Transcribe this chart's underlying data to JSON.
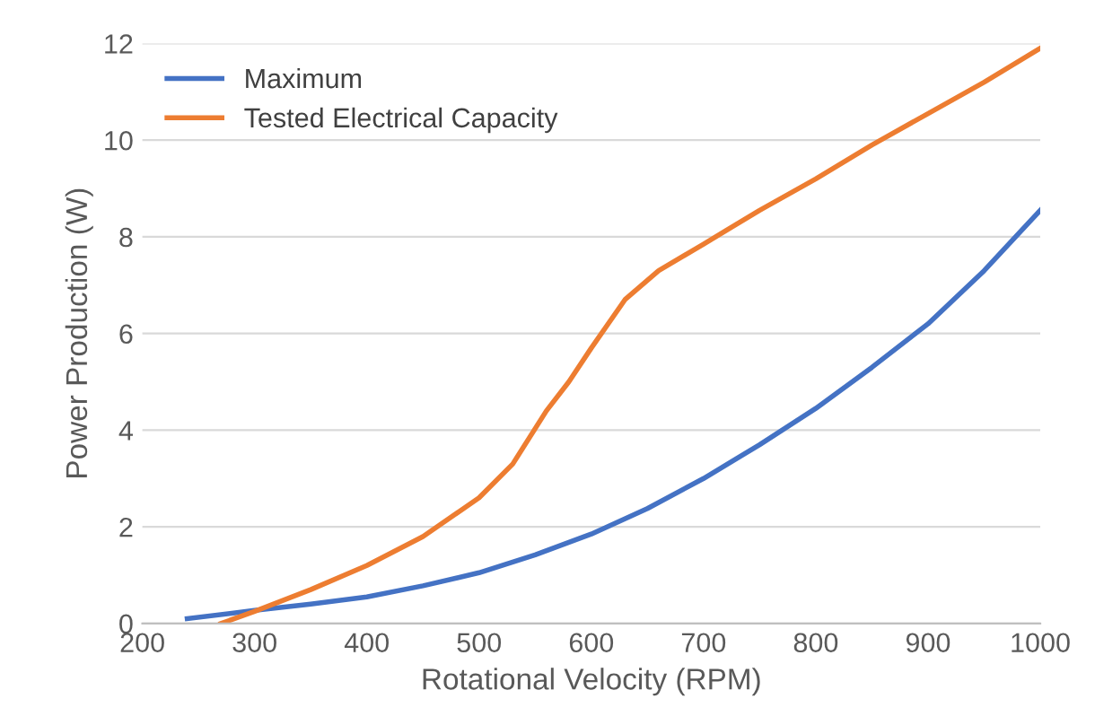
{
  "chart_data": {
    "type": "line",
    "xlabel": "Rotational Velocity (RPM)",
    "ylabel": "Power Production (W)",
    "xlim": [
      200,
      1000
    ],
    "xticks": [
      200,
      300,
      400,
      500,
      600,
      700,
      800,
      900,
      1000
    ],
    "ylim": [
      0,
      12
    ],
    "yticks": [
      0,
      2,
      4,
      6,
      8,
      10,
      12
    ],
    "grid": "y",
    "legend": "top left",
    "marker": "none",
    "line_style": "solid",
    "series": [
      {
        "name": "Maximum",
        "color": "#4472c4",
        "x": [
          240,
          300,
          350,
          400,
          450,
          500,
          550,
          600,
          650,
          700,
          750,
          800,
          850,
          900,
          950,
          1000
        ],
        "values": [
          0.1,
          0.27,
          0.4,
          0.55,
          0.78,
          1.05,
          1.42,
          1.85,
          2.38,
          3.0,
          3.7,
          4.45,
          5.3,
          6.2,
          7.3,
          8.55
        ]
      },
      {
        "name": "Tested Electrical Capacity",
        "color": "#ed7d31",
        "x": [
          270,
          300,
          350,
          400,
          450,
          500,
          530,
          560,
          580,
          600,
          630,
          660,
          700,
          750,
          800,
          850,
          900,
          950,
          1000
        ],
        "values": [
          0,
          0.25,
          0.7,
          1.2,
          1.8,
          2.6,
          3.3,
          4.4,
          5.0,
          5.7,
          6.7,
          7.3,
          7.85,
          8.55,
          9.2,
          9.9,
          10.55,
          11.2,
          11.9
        ]
      }
    ]
  }
}
